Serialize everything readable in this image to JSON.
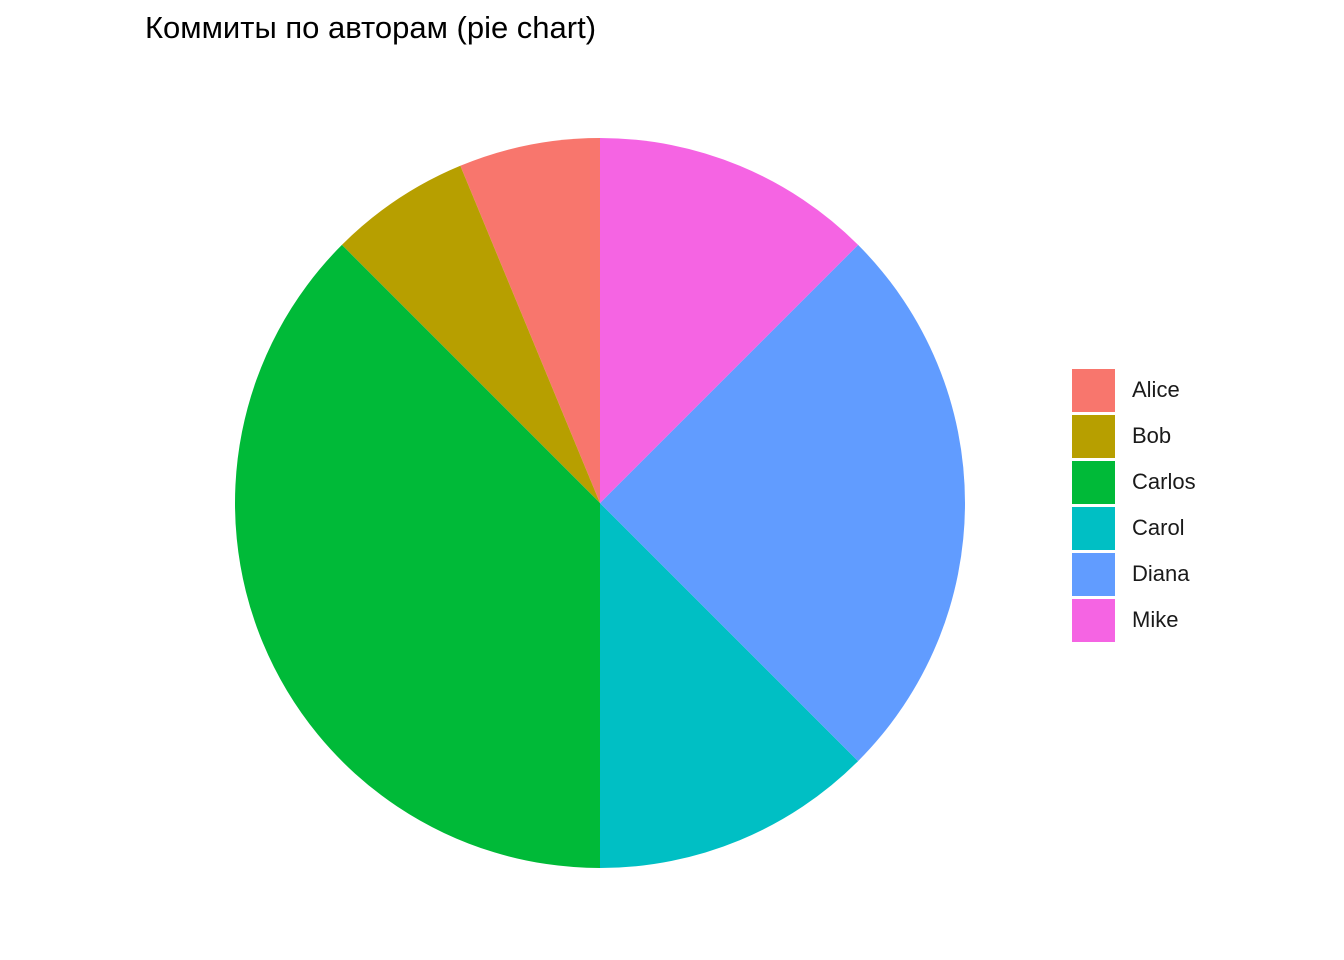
{
  "chart_data": {
    "type": "pie",
    "title": "Коммиты по авторам (pie chart)",
    "categories": [
      "Alice",
      "Bob",
      "Carlos",
      "Carol",
      "Diana",
      "Mike"
    ],
    "values": [
      1,
      1,
      6,
      2,
      4,
      2
    ],
    "colors": [
      "#F8766D",
      "#B79F00",
      "#00BA38",
      "#00BFC4",
      "#619CFF",
      "#F564E3"
    ],
    "start_angle": "12 o'clock",
    "direction": "counterclockwise",
    "legend_placement": "right",
    "grid": false
  }
}
